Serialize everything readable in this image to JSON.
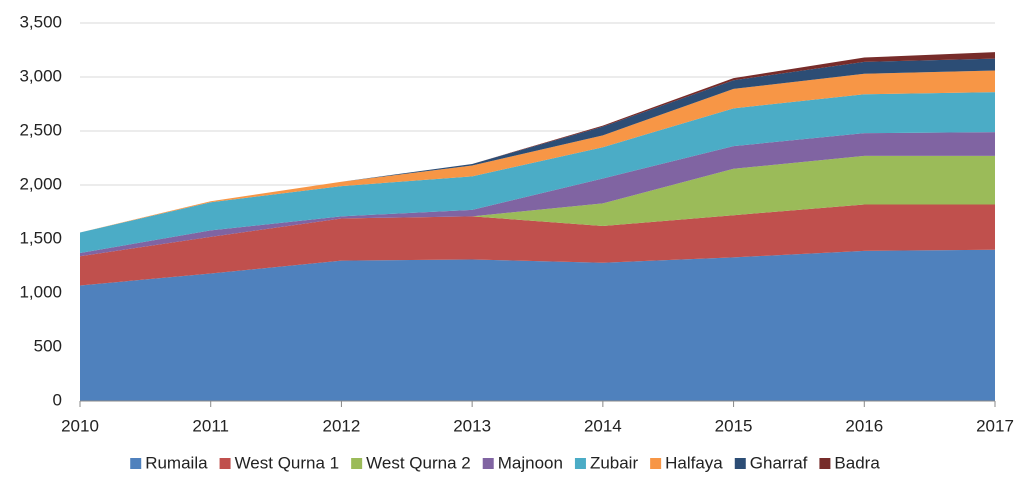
{
  "chart_data": {
    "type": "stacked_area",
    "categories": [
      "2010",
      "2011",
      "2012",
      "2013",
      "2014",
      "2015",
      "2016",
      "2017"
    ],
    "series": [
      {
        "name": "Rumaila",
        "color": "#4f81bd",
        "values": [
          1070,
          1180,
          1300,
          1310,
          1280,
          1330,
          1390,
          1400
        ]
      },
      {
        "name": "West Qurna 1",
        "color": "#c0504d",
        "values": [
          270,
          340,
          390,
          400,
          340,
          390,
          430,
          420
        ]
      },
      {
        "name": "West Qurna 2",
        "color": "#9bbb59",
        "values": [
          0,
          0,
          0,
          0,
          210,
          430,
          450,
          450
        ]
      },
      {
        "name": "Majnoon",
        "color": "#8064a2",
        "values": [
          30,
          60,
          20,
          60,
          230,
          210,
          210,
          220
        ]
      },
      {
        "name": "Zubair",
        "color": "#4bacc6",
        "values": [
          190,
          260,
          280,
          310,
          290,
          350,
          360,
          370
        ]
      },
      {
        "name": "Halfaya",
        "color": "#f79646",
        "values": [
          0,
          10,
          40,
          100,
          110,
          180,
          190,
          200
        ]
      },
      {
        "name": "Gharraf",
        "color": "#2c4d75",
        "values": [
          0,
          0,
          0,
          15,
          80,
          80,
          110,
          110
        ]
      },
      {
        "name": "Badra",
        "color": "#772c2a",
        "values": [
          0,
          0,
          0,
          0,
          10,
          20,
          40,
          60
        ]
      }
    ],
    "ylim": [
      0,
      3500
    ],
    "yticks": [
      0,
      500,
      {
        "value": 1000,
        "label": "1,000"
      },
      {
        "value": 1500,
        "label": "1,500"
      },
      {
        "value": 2000,
        "label": "2,000"
      },
      {
        "value": 2500,
        "label": "2,500"
      },
      {
        "value": 3000,
        "label": "3,000"
      },
      {
        "value": 3500,
        "label": "3,500"
      }
    ],
    "grid": true,
    "legend": "bottom"
  }
}
